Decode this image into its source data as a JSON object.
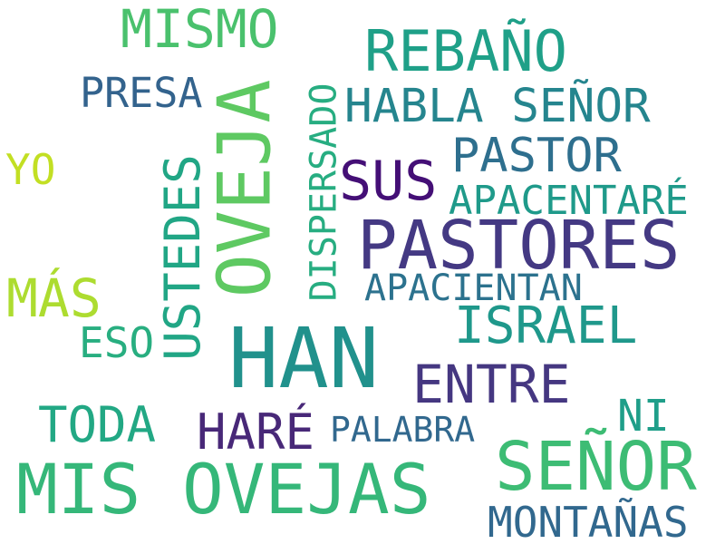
{
  "word_cloud": {
    "words": [
      {
        "key": "mis_ovejas",
        "text": "MIS OVEJAS",
        "color": "#35b779"
      },
      {
        "key": "han",
        "text": "HAN",
        "color": "#21918c"
      },
      {
        "key": "pastores",
        "text": "PASTORES",
        "color": "#443983"
      },
      {
        "key": "oveja",
        "text": "OVEJA",
        "color": "#5ec962"
      },
      {
        "key": "senor_1",
        "text": "SEÑOR",
        "color": "#3dbc74"
      },
      {
        "key": "mismo",
        "text": "MISMO",
        "color": "#4ac16d"
      },
      {
        "key": "rebano",
        "text": "REBAÑO",
        "color": "#1fa088"
      },
      {
        "key": "habla_senor",
        "text": "HABLA SEÑOR",
        "color": "#25858e"
      },
      {
        "key": "presa",
        "text": "PRESA",
        "color": "#33638d"
      },
      {
        "key": "pastor",
        "text": "PASTOR",
        "color": "#2e6f8e"
      },
      {
        "key": "sus",
        "text": "SUS",
        "color": "#440f76"
      },
      {
        "key": "apacentare",
        "text": "APACENTARÉ",
        "color": "#1f9a8a"
      },
      {
        "key": "ustedes",
        "text": "USTEDES",
        "color": "#21a685"
      },
      {
        "key": "disperado",
        "text": "DISPERSADO",
        "color": "#27ad81"
      },
      {
        "key": "apacientan",
        "text": "APACIENTAN",
        "color": "#2c728e"
      },
      {
        "key": "israel",
        "text": "ISRAEL",
        "color": "#1f988b"
      },
      {
        "key": "entre",
        "text": "ENTRE",
        "color": "#453781"
      },
      {
        "key": "yo",
        "text": "YO",
        "color": "#c2df23"
      },
      {
        "key": "mas",
        "text": "MÁS",
        "color": "#addc30"
      },
      {
        "key": "eso",
        "text": "ESO",
        "color": "#28ae80"
      },
      {
        "key": "toda",
        "text": "TODA",
        "color": "#22a884"
      },
      {
        "key": "hare",
        "text": "HARÉ",
        "color": "#482878"
      },
      {
        "key": "palabra",
        "text": "PALABRA",
        "color": "#31688e"
      },
      {
        "key": "ni",
        "text": "NI",
        "color": "#1f9e89"
      },
      {
        "key": "montanas",
        "text": "MONTAÑAS",
        "color": "#31688e"
      }
    ]
  }
}
